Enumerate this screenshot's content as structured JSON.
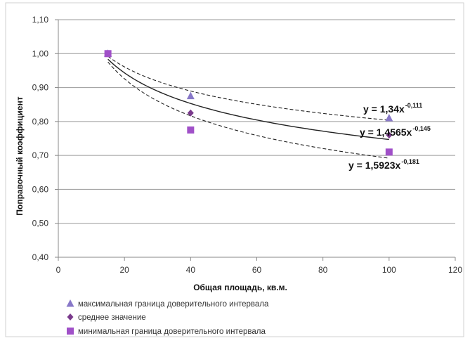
{
  "chart_data": {
    "type": "scatter",
    "xlabel": "Общая площадь, кв.м.",
    "ylabel": "Поправочный коэффициент",
    "xlim": [
      0,
      120
    ],
    "ylim": [
      0.4,
      1.1
    ],
    "x_ticks": [
      "0",
      "20",
      "40",
      "60",
      "80",
      "100",
      "120"
    ],
    "y_ticks": [
      "0,40",
      "0,50",
      "0,60",
      "0,70",
      "0,80",
      "0,90",
      "1,00",
      "1,10"
    ],
    "grid": "horizontal",
    "legend_position": "bottom",
    "series": [
      {
        "name": "максимальная граница доверительного интервала",
        "marker": "triangle",
        "color": "#8878c8",
        "x": [
          15,
          40,
          100
        ],
        "y": [
          1.0,
          0.875,
          0.81
        ],
        "trendline": {
          "a": 1.34,
          "b": -0.111,
          "style": "dashed",
          "equation": "y = 1,34x",
          "exponent": "-0,111"
        }
      },
      {
        "name": "среднее значение",
        "marker": "diamond",
        "color": "#7a3a8c",
        "x": [
          15,
          40,
          100
        ],
        "y": [
          1.0,
          0.825,
          0.76
        ],
        "trendline": {
          "a": 1.4565,
          "b": -0.145,
          "style": "solid",
          "equation": "y = 1,4565x",
          "exponent": "-0,145"
        }
      },
      {
        "name": "минимальная граница доверительного интервала",
        "marker": "square",
        "color": "#a050c8",
        "x": [
          15,
          40,
          100
        ],
        "y": [
          1.0,
          0.775,
          0.71
        ],
        "trendline": {
          "a": 1.5923,
          "b": -0.181,
          "style": "dashed",
          "equation": "y = 1,5923x",
          "exponent": "-0,181"
        }
      }
    ]
  }
}
